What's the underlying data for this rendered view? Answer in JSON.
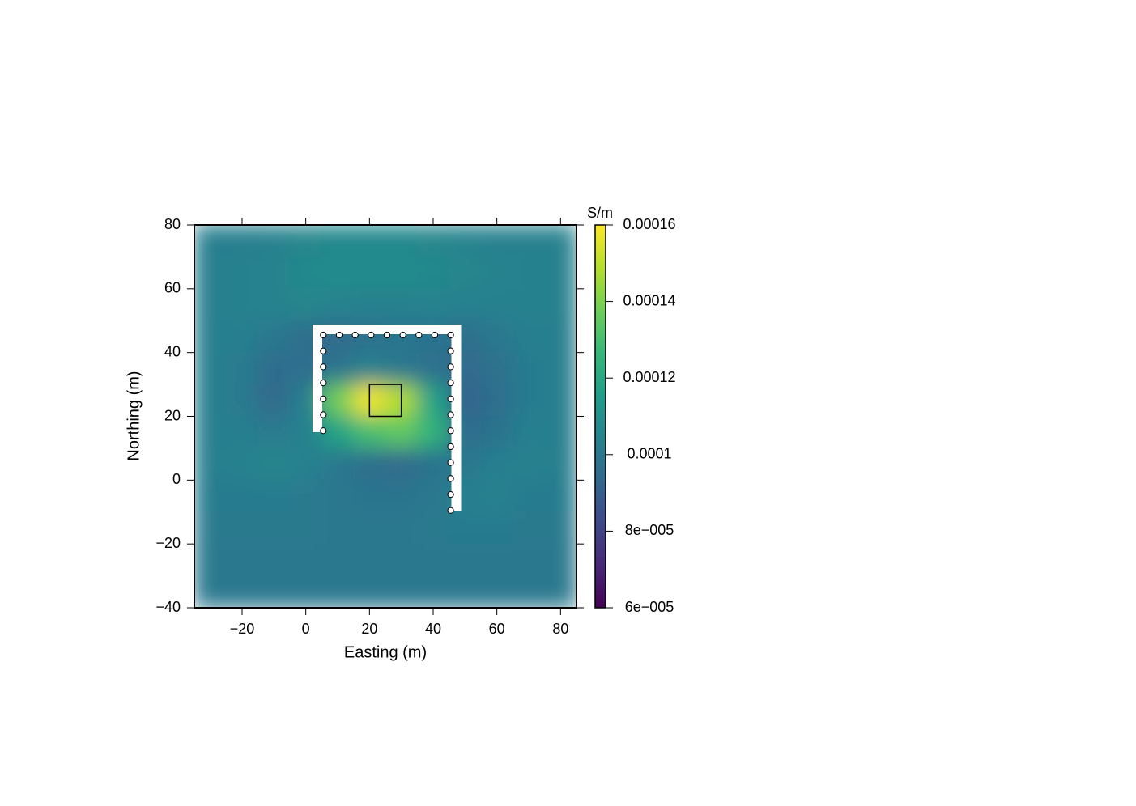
{
  "chart_data": {
    "type": "heatmap",
    "xlabel": "Easting (m)",
    "ylabel": "Northing (m)",
    "colorbar_label": "S/m",
    "colormap": "viridis",
    "xlim": [
      -35,
      85
    ],
    "ylim": [
      -40,
      80
    ],
    "xticks": [
      {
        "value": -20,
        "label": "−20"
      },
      0,
      20,
      40,
      60,
      80
    ],
    "yticks": [
      {
        "value": -40,
        "label": "−40"
      },
      {
        "value": -20,
        "label": "−20"
      },
      0,
      20,
      40,
      60,
      80
    ],
    "clim": [
      6e-05,
      0.00016
    ],
    "cticks": [
      {
        "value": 6e-05,
        "label": "6e−005"
      },
      {
        "value": 8e-05,
        "label": "8e−005"
      },
      0.0001,
      0.00012,
      0.00014,
      0.00016
    ],
    "x": [
      -30,
      -20,
      -10,
      0,
      10,
      20,
      30,
      40,
      50,
      60,
      70,
      80
    ],
    "y": [
      75,
      65,
      55,
      45,
      35,
      25,
      15,
      5,
      -5,
      -15,
      -25,
      -35
    ],
    "z": [
      [
        0.000103,
        0.000103,
        0.000104,
        0.000106,
        0.000107,
        0.000107,
        0.000107,
        0.000106,
        0.000105,
        0.000104,
        0.000104,
        0.000104
      ],
      [
        0.000103,
        0.000104,
        0.000105,
        0.000107,
        0.000108,
        0.000108,
        0.000108,
        0.000107,
        0.000106,
        0.000105,
        0.000104,
        0.000104
      ],
      [
        0.000103,
        0.000104,
        0.000105,
        0.000106,
        0.000105,
        0.000104,
        0.000104,
        0.000105,
        0.000104,
        0.000104,
        0.000104,
        0.000104
      ],
      [
        0.000103,
        0.000103,
        0.0001,
        9.6e-05,
        9.4e-05,
        9.7e-05,
        9.9e-05,
        9.8e-05,
        9.6e-05,
        0.0001,
        0.000103,
        0.000103
      ],
      [
        0.000103,
        0.000101,
        9.5e-05,
        9.6e-05,
        9.9e-05,
        0.000104,
        0.0001,
        9.7e-05,
        9.4e-05,
        9.7e-05,
        0.000102,
        0.000103
      ],
      [
        0.000103,
        0.000101,
        9.4e-05,
        0.000103,
        0.000138,
        0.000158,
        0.000148,
        0.000118,
        9.2e-05,
        9.6e-05,
        0.000102,
        0.000103
      ],
      [
        0.000103,
        0.000103,
        0.000101,
        0.000104,
        0.000118,
        0.00013,
        0.000135,
        0.000125,
        9.5e-05,
        9.8e-05,
        0.000103,
        0.000103
      ],
      [
        0.000103,
        0.000104,
        0.000106,
        0.000104,
        0.0001,
        9.6e-05,
        9.4e-05,
        9.8e-05,
        0.0001,
        0.000103,
        0.000104,
        0.000103
      ],
      [
        0.000102,
        0.000102,
        0.000102,
        0.000101,
        0.0001,
        9.9e-05,
        9.9e-05,
        0.0001,
        0.000103,
        0.000104,
        0.000102,
        0.000102
      ],
      [
        0.000101,
        0.000101,
        0.000101,
        0.000101,
        0.0001,
        0.0001,
        0.0001,
        0.000101,
        0.000102,
        0.000102,
        0.000101,
        0.000101
      ],
      [
        0.0001,
        0.0001,
        0.0001,
        0.0001,
        0.0001,
        0.0001,
        0.0001,
        0.0001,
        0.0001,
        0.0001,
        0.0001,
        0.0001
      ],
      [
        0.0001,
        0.0001,
        0.0001,
        0.0001,
        0.0001,
        0.0001,
        0.0001,
        0.0001,
        0.0001,
        0.0001,
        0.0001,
        0.0001
      ]
    ],
    "electrodes": {
      "x": [
        5.5,
        5.5,
        5.5,
        5.5,
        5.5,
        5.5,
        5.5,
        10.5,
        15.5,
        20.5,
        25.5,
        30.5,
        35.5,
        40.5,
        45.5,
        45.5,
        45.5,
        45.5,
        45.5,
        45.5,
        45.5,
        45.5,
        45.5,
        45.5,
        45.5,
        45.5
      ],
      "y": [
        15.5,
        20.5,
        25.5,
        30.5,
        35.5,
        40.5,
        45.5,
        45.5,
        45.5,
        45.5,
        45.5,
        45.5,
        45.5,
        45.5,
        45.5,
        40.5,
        35.5,
        30.5,
        25.5,
        20.5,
        15.5,
        10.5,
        5.5,
        0.5,
        -4.5,
        -9.5
      ]
    },
    "box": {
      "x": [
        20,
        30
      ],
      "y": [
        20,
        30
      ]
    }
  }
}
